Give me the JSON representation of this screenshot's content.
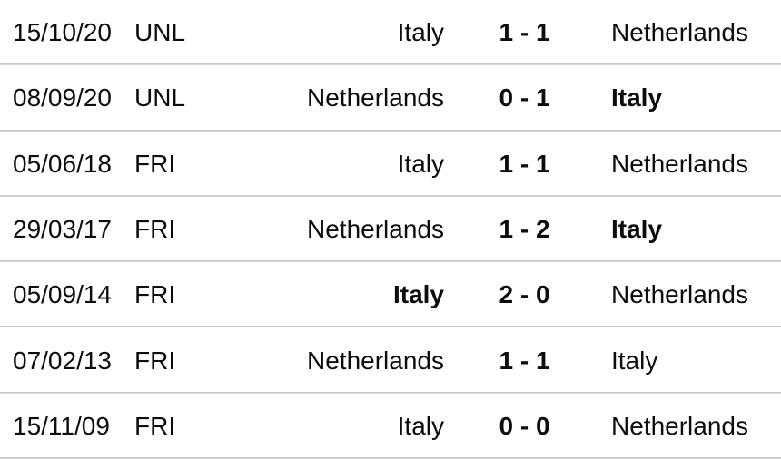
{
  "widget": {
    "name": "head-to-head-results",
    "teams": [
      "Italy",
      "Netherlands"
    ],
    "divider_color": "#c9c9c9",
    "text_color": "#0d0d0d",
    "background_color": "#ffffff"
  },
  "table": {
    "columns": [
      "date",
      "competition",
      "home_team",
      "score",
      "away_team"
    ],
    "rows": [
      {
        "date": "15/10/20",
        "competition": "UNL",
        "home": "Italy",
        "score": "1 - 1",
        "away": "Netherlands",
        "home_bold": false,
        "away_bold": false
      },
      {
        "date": "08/09/20",
        "competition": "UNL",
        "home": "Netherlands",
        "score": "0 - 1",
        "away": "Italy",
        "home_bold": false,
        "away_bold": true
      },
      {
        "date": "05/06/18",
        "competition": "FRI",
        "home": "Italy",
        "score": "1 - 1",
        "away": "Netherlands",
        "home_bold": false,
        "away_bold": false
      },
      {
        "date": "29/03/17",
        "competition": "FRI",
        "home": "Netherlands",
        "score": "1 - 2",
        "away": "Italy",
        "home_bold": false,
        "away_bold": true
      },
      {
        "date": "05/09/14",
        "competition": "FRI",
        "home": "Italy",
        "score": "2 - 0",
        "away": "Netherlands",
        "home_bold": true,
        "away_bold": false
      },
      {
        "date": "07/02/13",
        "competition": "FRI",
        "home": "Netherlands",
        "score": "1 - 1",
        "away": "Italy",
        "home_bold": false,
        "away_bold": false
      },
      {
        "date": "15/11/09",
        "competition": "FRI",
        "home": "Italy",
        "score": "0 - 0",
        "away": "Netherlands",
        "home_bold": false,
        "away_bold": false
      }
    ]
  }
}
